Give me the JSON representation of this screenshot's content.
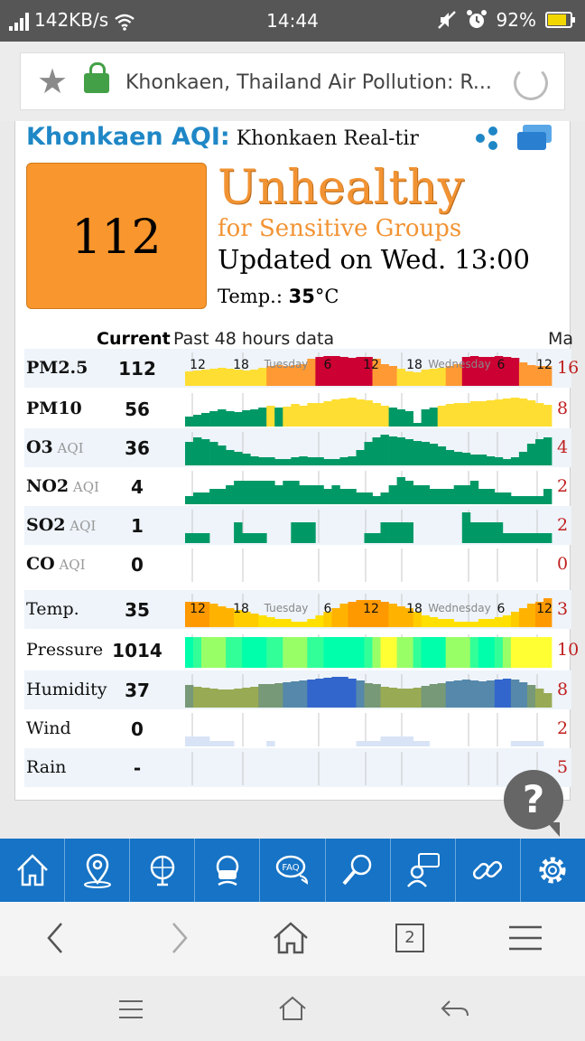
{
  "status_bar": {
    "net_speed": "142KB/s",
    "time": "14:44",
    "battery": "92%",
    "battery_level": 0.92
  },
  "browser": {
    "url_title": "Khonkaen, Thailand Air Pollution: R...",
    "tab_count": "2"
  },
  "page": {
    "title_strong": "Khonkaen AQI",
    "title_colon": ":",
    "title_rest": " Khonkaen Real-tir",
    "aqi_value": "112",
    "level_line1": "Unhealthy",
    "level_line2": "for Sensitive Groups",
    "updated": "Updated on Wed. 13:00",
    "temp_label": "Temp.: ",
    "temp_value": "35",
    "temp_unit": "°C",
    "col_current": "Current",
    "col_past": "Past 48 hours data",
    "col_max": "Ma",
    "axis_labels": [
      "12",
      "18",
      "Tuesday",
      "6",
      "12",
      "18",
      "Wednesday",
      "6",
      "12"
    ],
    "help_icon": "?"
  },
  "rows": [
    {
      "name": "PM2.5",
      "sub": "",
      "value": "112",
      "max": "16"
    },
    {
      "name": "PM10",
      "sub": "",
      "value": "56",
      "max": "8"
    },
    {
      "name": "O3",
      "sub": " AQI",
      "value": "36",
      "max": "4"
    },
    {
      "name": "NO2",
      "sub": " AQI",
      "value": "4",
      "max": "2"
    },
    {
      "name": "SO2",
      "sub": " AQI",
      "value": "1",
      "max": "2"
    },
    {
      "name": "CO",
      "sub": " AQI",
      "value": "0",
      "max": "0"
    },
    {
      "name": "Temp.",
      "sub": "",
      "value": "35",
      "max": "3"
    },
    {
      "name": "Pressure",
      "sub": "",
      "value": "1014",
      "max": "10"
    },
    {
      "name": "Humidity",
      "sub": "",
      "value": "37",
      "max": "8"
    },
    {
      "name": "Wind",
      "sub": "",
      "value": "0",
      "max": "2"
    },
    {
      "name": "Rain",
      "sub": "",
      "value": "-",
      "max": "5"
    }
  ],
  "colors": {
    "good": "#009966",
    "moderate": "#ffde33",
    "sensitive": "#ff9933",
    "unhealthy": "#cc0033",
    "link_blue": "#1f87c6",
    "nav_blue": "#1673c5"
  },
  "nav_icons": [
    "home-icon",
    "location-pin-icon",
    "globe-icon",
    "mask-icon",
    "faq-icon",
    "search-icon",
    "chat-person-icon",
    "link-icon",
    "gear-icon"
  ],
  "chart_data": [
    {
      "type": "bar",
      "name": "PM2.5",
      "values": [
        80,
        85,
        90,
        95,
        100,
        95,
        90,
        85,
        90,
        100,
        110,
        115,
        110,
        115,
        120,
        150,
        160,
        165,
        165,
        160,
        155,
        160,
        160,
        150,
        120,
        110,
        95,
        80,
        75,
        90,
        95,
        100,
        110,
        120,
        160,
        165,
        160,
        160,
        165,
        160,
        155,
        130,
        115,
        110,
        112
      ]
    },
    {
      "type": "bar",
      "name": "PM10",
      "values": [
        25,
        30,
        35,
        40,
        45,
        40,
        38,
        42,
        45,
        50,
        55,
        50,
        52,
        58,
        55,
        60,
        62,
        65,
        70,
        72,
        75,
        70,
        68,
        60,
        55,
        50,
        45,
        40,
        10,
        45,
        50,
        55,
        58,
        60,
        62,
        65,
        66,
        68,
        70,
        72,
        75,
        72,
        68,
        60,
        56
      ]
    },
    {
      "type": "bar",
      "name": "O3",
      "values": [
        30,
        36,
        34,
        30,
        26,
        20,
        18,
        15,
        12,
        10,
        10,
        8,
        8,
        10,
        12,
        10,
        10,
        8,
        8,
        10,
        12,
        20,
        30,
        36,
        40,
        38,
        36,
        34,
        32,
        30,
        28,
        25,
        20,
        18,
        16,
        14,
        14,
        12,
        10,
        8,
        10,
        18,
        28,
        34,
        36
      ]
    },
    {
      "type": "bar",
      "name": "NO2",
      "values": [
        2,
        3,
        3,
        4,
        4,
        5,
        6,
        6,
        6,
        6,
        6,
        5,
        6,
        6,
        5,
        5,
        5,
        4,
        5,
        4,
        4,
        3,
        3,
        2,
        3,
        5,
        7,
        6,
        5,
        5,
        4,
        4,
        4,
        5,
        5,
        6,
        4,
        4,
        3,
        3,
        2,
        2,
        2,
        2,
        4
      ]
    },
    {
      "type": "bar",
      "name": "SO2",
      "values": [
        1,
        1,
        1,
        0,
        0,
        0,
        2,
        1,
        1,
        1,
        0,
        0,
        0,
        2,
        2,
        2,
        0,
        0,
        0,
        0,
        0,
        0,
        1,
        1,
        2,
        2,
        2,
        2,
        0,
        0,
        0,
        0,
        0,
        0,
        3,
        2,
        2,
        2,
        2,
        1,
        1,
        1,
        1,
        1,
        1
      ]
    },
    {
      "type": "bar",
      "name": "CO",
      "values": [
        0,
        0,
        0,
        0,
        0,
        0,
        0,
        0,
        0,
        0,
        0,
        0,
        0,
        0,
        0,
        0,
        0,
        0,
        0,
        0,
        0,
        0,
        0,
        0,
        0,
        0,
        0,
        0,
        0,
        0,
        0,
        0,
        0,
        0,
        0,
        0,
        0,
        0,
        0,
        0,
        0,
        0,
        0,
        0,
        0
      ]
    },
    {
      "type": "bar",
      "name": "Temp.",
      "values": [
        33,
        33,
        33,
        32,
        31,
        30,
        29,
        28,
        27,
        26,
        25,
        24,
        24,
        23,
        23,
        24,
        26,
        28,
        30,
        32,
        33,
        34,
        34,
        34,
        33,
        32,
        31,
        30,
        28,
        26,
        25,
        24,
        24,
        23,
        23,
        23,
        24,
        24,
        25,
        26,
        28,
        30,
        32,
        33,
        35
      ]
    },
    {
      "type": "bar",
      "name": "Pressure",
      "values": [
        1011,
        1012,
        1013,
        1013,
        1013,
        1012,
        1012,
        1011,
        1011,
        1011,
        1012,
        1012,
        1013,
        1013,
        1013,
        1012,
        1012,
        1011,
        1011,
        1010,
        1010,
        1011,
        1012,
        1013,
        1014,
        1014,
        1013,
        1013,
        1012,
        1011,
        1011,
        1010,
        1013,
        1013,
        1013,
        1012,
        1011,
        1011,
        1012,
        1013,
        1014,
        1014,
        1014,
        1014,
        1014
      ]
    },
    {
      "type": "bar",
      "name": "Humidity",
      "values": [
        58,
        55,
        52,
        50,
        48,
        48,
        50,
        52,
        55,
        60,
        62,
        64,
        66,
        68,
        70,
        74,
        76,
        78,
        80,
        80,
        76,
        70,
        64,
        60,
        55,
        52,
        50,
        50,
        52,
        56,
        60,
        64,
        68,
        70,
        72,
        70,
        68,
        70,
        74,
        76,
        72,
        66,
        58,
        50,
        37
      ]
    },
    {
      "type": "bar",
      "name": "Wind",
      "values": [
        2,
        2,
        2,
        1,
        1,
        1,
        0,
        0,
        0,
        0,
        1,
        0,
        0,
        0,
        0,
        0,
        0,
        0,
        0,
        0,
        0,
        1,
        1,
        1,
        2,
        2,
        2,
        2,
        1,
        1,
        0,
        0,
        0,
        0,
        0,
        0,
        0,
        0,
        0,
        0,
        1,
        1,
        1,
        1,
        0
      ]
    },
    {
      "type": "bar",
      "name": "Rain",
      "values": [
        0,
        0,
        0,
        0,
        0,
        0,
        0,
        0,
        0,
        0,
        0,
        0,
        0,
        0,
        0,
        0,
        0,
        0,
        0,
        0,
        0,
        0,
        0,
        0,
        0,
        0,
        0,
        0,
        0,
        0,
        0,
        0,
        0,
        0,
        0,
        0,
        0,
        0,
        0,
        0,
        0,
        0,
        0,
        0,
        0
      ]
    }
  ]
}
